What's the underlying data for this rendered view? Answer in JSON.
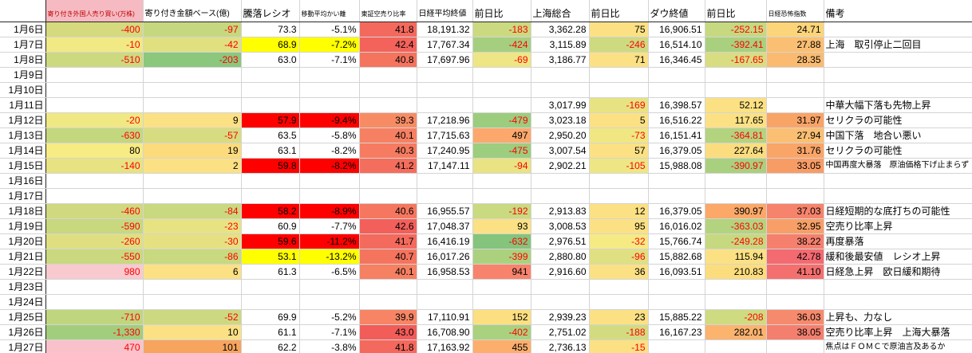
{
  "colors": {
    "negative_text": "#ff0000",
    "alert_red_fill": "#ff0000",
    "alert_yellow_fill": "#ffff00",
    "header_foreign_bg": "#f5bac2",
    "header_foreign_fg": "#c00000"
  },
  "table": {
    "columns": [
      {
        "key": "date",
        "label": ""
      },
      {
        "key": "foreign",
        "label": "寄り付き外国人売り買い(万株)",
        "hstyle": "small-red",
        "hbg": "#f5bac2",
        "hfg": "#c00000"
      },
      {
        "key": "amount",
        "label": "寄り付き金額ベース(億)",
        "hstyle": "mid"
      },
      {
        "key": "ratio",
        "label": "騰落レシオ"
      },
      {
        "key": "ma_dev",
        "label": "移動平均かい離",
        "hstyle": "small"
      },
      {
        "key": "short_sell",
        "label": "東証空売り比率",
        "hstyle": "small"
      },
      {
        "key": "nikkei",
        "label": "日経平均終値",
        "hstyle": "mid"
      },
      {
        "key": "nikkei_chg",
        "label": "前日比"
      },
      {
        "key": "shanghai",
        "label": "上海総合"
      },
      {
        "key": "shanghai_chg",
        "label": "前日比"
      },
      {
        "key": "dow",
        "label": "ダウ終値"
      },
      {
        "key": "dow_chg",
        "label": "前日比"
      },
      {
        "key": "vix",
        "label": "日経恐怖指数",
        "hstyle": "small"
      },
      {
        "key": "note",
        "label": "備考"
      }
    ],
    "rows": [
      {
        "date": "1月6日",
        "cells": [
          [
            "-400",
            "#d5da7f",
            "r"
          ],
          [
            "-97",
            "#c6d87f",
            "r"
          ],
          "73.3",
          "-5.1%",
          [
            "41.8",
            "#f4695d",
            ""
          ],
          "18,191.32",
          [
            "-183",
            "#cbda80",
            "r"
          ],
          "3,362.28",
          [
            "75",
            "#fbe184",
            ""
          ],
          "16,906.51",
          [
            "-252.15",
            "#c6d980",
            "r"
          ],
          [
            "24.71",
            "#fcd57b",
            ""
          ]
        ],
        "note": ""
      },
      {
        "date": "1月7日",
        "cells": [
          [
            "-10",
            "#f1e983",
            "r"
          ],
          [
            "-42",
            "#e0e081",
            "r"
          ],
          [
            "68.9",
            "#ffff00",
            ""
          ],
          [
            "-7.2%",
            "#ffff00",
            ""
          ],
          [
            "42.4",
            "#f3635b",
            ""
          ],
          "17,767.34",
          [
            "-424",
            "#a5cf7e",
            "r"
          ],
          "3,115.89",
          [
            "-246",
            "#cdda80",
            "r"
          ],
          "16,514.10",
          [
            "-392.41",
            "#a9d07e",
            "r"
          ],
          [
            "27.88",
            "#fbbf73",
            ""
          ]
        ],
        "note": "上海　取引停止二回目"
      },
      {
        "date": "1月8日",
        "cells": [
          [
            "-510",
            "#cdd97f",
            "r"
          ],
          [
            "-203",
            "#8bc77d",
            "r"
          ],
          "63.0",
          "-7.1%",
          [
            "40.8",
            "#f5745e",
            ""
          ],
          "17,697.96",
          [
            "-69",
            "#eee684",
            "r"
          ],
          "3,186.77",
          [
            "71",
            "#fbe184",
            ""
          ],
          "16,346.45",
          [
            "-167.65",
            "#d9dd81",
            "r"
          ],
          [
            "28.35",
            "#fabb71",
            ""
          ]
        ],
        "note": ""
      },
      {
        "date": "1月9日",
        "cells": [
          "",
          "",
          "",
          "",
          "",
          "",
          "",
          "",
          "",
          "",
          "",
          ""
        ],
        "note": ""
      },
      {
        "date": "1月10日",
        "cells": [
          "",
          "",
          "",
          "",
          "",
          "",
          "",
          "",
          "",
          "",
          "",
          ""
        ],
        "note": ""
      },
      {
        "date": "1月11日",
        "cells": [
          "",
          "",
          "",
          "",
          "",
          "",
          "",
          "3,017.99",
          [
            "-169",
            "#e8e382",
            "r"
          ],
          "16,398.57",
          [
            "52.12",
            "#fbe184",
            ""
          ],
          ""
        ],
        "note": "中華大幅下落も先物上昇"
      },
      {
        "date": "1月12日",
        "cells": [
          [
            "-20",
            "#f0e883",
            "r"
          ],
          [
            "9",
            "#fbe184",
            ""
          ],
          [
            "57.9",
            "#ff0000",
            ""
          ],
          [
            "-9.4%",
            "#ff0000",
            ""
          ],
          [
            "39.3",
            "#f78c64",
            ""
          ],
          "17,218.96",
          [
            "-479",
            "#9ccd7e",
            "r"
          ],
          "3,023.18",
          [
            "5",
            "#fbe184",
            ""
          ],
          "16,516.22",
          [
            "117.65",
            "#fbe184",
            ""
          ],
          [
            "31.97",
            "#f9a467",
            ""
          ]
        ],
        "note": "セリクラの可能性"
      },
      {
        "date": "1月13日",
        "cells": [
          [
            "-630",
            "#c3d77e",
            "r"
          ],
          [
            "-57",
            "#d8dc80",
            "r"
          ],
          "63.5",
          "-5.8%",
          [
            "40.1",
            "#f68062",
            ""
          ],
          "17,715.63",
          [
            "497",
            "#fca86c",
            ""
          ],
          "2,950.20",
          [
            "-73",
            "#f0e783",
            "r"
          ],
          "16,151.41",
          [
            "-364.81",
            "#b3d37f",
            "r"
          ],
          [
            "27.94",
            "#fbbf73",
            ""
          ]
        ],
        "note": "中国下落　地合い悪い"
      },
      {
        "date": "1月14日",
        "cells": [
          [
            "80",
            "#f7eb84",
            ""
          ],
          [
            "19",
            "#fcdb7d",
            ""
          ],
          "63.1",
          "-8.2%",
          [
            "40.3",
            "#f67b60",
            ""
          ],
          "17,240.95",
          [
            "-475",
            "#9dcd7e",
            "r"
          ],
          "3,007.54",
          [
            "57",
            "#fbe184",
            ""
          ],
          "16,379.05",
          [
            "227.64",
            "#fbdd80",
            ""
          ],
          [
            "31.76",
            "#f9a568",
            ""
          ]
        ],
        "note": "セリクラの可能性"
      },
      {
        "date": "1月15日",
        "cells": [
          [
            "-140",
            "#e7e282",
            "r"
          ],
          [
            "2",
            "#fbe184",
            ""
          ],
          [
            "59.8",
            "#ff0000",
            ""
          ],
          [
            "-8.2%",
            "#ff0000",
            ""
          ],
          [
            "41.2",
            "#f46e5d",
            ""
          ],
          "17,147.11",
          [
            "-94",
            "#e9e383",
            "r"
          ],
          "2,902.21",
          [
            "-105",
            "#eee684",
            "r"
          ],
          "15,988.08",
          [
            "-390.97",
            "#a9d07e",
            "r"
          ],
          [
            "33.05",
            "#f89c66",
            ""
          ]
        ],
        "note": "中国再度大暴落　原油価格下げ止まらず",
        "note_small": true
      },
      {
        "date": "1月16日",
        "cells": [
          "",
          "",
          "",
          "",
          "",
          "",
          "",
          "",
          "",
          "",
          "",
          ""
        ],
        "note": ""
      },
      {
        "date": "1月17日",
        "cells": [
          "",
          "",
          "",
          "",
          "",
          "",
          "",
          "",
          "",
          "",
          "",
          ""
        ],
        "note": ""
      },
      {
        "date": "1月18日",
        "cells": [
          [
            "-460",
            "#d0d97f",
            "r"
          ],
          [
            "-84",
            "#c9d97f",
            "r"
          ],
          [
            "58.2",
            "#ff0000",
            ""
          ],
          [
            "-8.9%",
            "#ff0000",
            ""
          ],
          [
            "40.6",
            "#f5775f",
            ""
          ],
          "16,955.57",
          [
            "-192",
            "#c9da80",
            "r"
          ],
          "2,913.83",
          [
            "12",
            "#fbe184",
            ""
          ],
          "16,379.05",
          [
            "390.97",
            "#fba869",
            ""
          ],
          [
            "37.03",
            "#f6836c",
            ""
          ]
        ],
        "note": "日経短期的な底打ちの可能性"
      },
      {
        "date": "1月19日",
        "cells": [
          [
            "-590",
            "#c7d87e",
            "r"
          ],
          [
            "-23",
            "#e8e382",
            "r"
          ],
          "60.9",
          "-7.7%",
          [
            "42.6",
            "#f35f5a",
            ""
          ],
          "17,048.37",
          [
            "93",
            "#fbe184",
            ""
          ],
          "3,008.53",
          [
            "95",
            "#fbe184",
            ""
          ],
          "16,016.02",
          [
            "-363.03",
            "#b3d37f",
            "r"
          ],
          [
            "32.95",
            "#f89f67",
            ""
          ]
        ],
        "note": "空売り比率上昇"
      },
      {
        "date": "1月20日",
        "cells": [
          [
            "-260",
            "#dfdf81",
            "r"
          ],
          [
            "-30",
            "#e5e182",
            "r"
          ],
          [
            "59.6",
            "#ff0000",
            ""
          ],
          [
            "-11.2%",
            "#ff0000",
            ""
          ],
          [
            "41.7",
            "#f46a5d",
            ""
          ],
          "16,416.19",
          [
            "-632",
            "#84c47c",
            "r"
          ],
          "2,976.51",
          [
            "-32",
            "#f6ea84",
            "r"
          ],
          "15,766.74",
          [
            "-249.28",
            "#c6d980",
            "r"
          ],
          [
            "38.22",
            "#f5806e",
            ""
          ]
        ],
        "note": "再度暴落"
      },
      {
        "date": "1月21日",
        "cells": [
          [
            "-550",
            "#cad87f",
            "r"
          ],
          [
            "-86",
            "#c8d97f",
            "r"
          ],
          [
            "53.1",
            "#ffff00",
            ""
          ],
          [
            "-13.2%",
            "#ffff00",
            ""
          ],
          [
            "40.7",
            "#f5745e",
            ""
          ],
          "16,017.26",
          [
            "-399",
            "#abd17e",
            "r"
          ],
          "2,880.80",
          [
            "-96",
            "#dfe081",
            "r"
          ],
          "15,882.68",
          [
            "115.94",
            "#fbe184",
            ""
          ],
          [
            "42.78",
            "#f36a71",
            ""
          ]
        ],
        "note": "緩和後最安値　レシオ上昇"
      },
      {
        "date": "1月22日",
        "cells": [
          [
            "980",
            "#f8c9ce",
            "r"
          ],
          [
            "6",
            "#fbe184",
            ""
          ],
          "61.3",
          "-6.5%",
          [
            "40.1",
            "#f68062",
            ""
          ],
          "16,958.53",
          [
            "941",
            "#f8836c",
            ""
          ],
          "2,916.60",
          [
            "36",
            "#fbe184",
            ""
          ],
          "16,093.51",
          [
            "210.83",
            "#fcdd7e",
            ""
          ],
          [
            "41.10",
            "#f4706f",
            ""
          ]
        ],
        "note": "日経急上昇　欧日緩和期待"
      },
      {
        "date": "1月23日",
        "cells": [
          "",
          "",
          "",
          "",
          "",
          "",
          "",
          "",
          "",
          "",
          "",
          ""
        ],
        "note": ""
      },
      {
        "date": "1月24日",
        "cells": [
          "",
          "",
          "",
          "",
          "",
          "",
          "",
          "",
          "",
          "",
          "",
          ""
        ],
        "note": ""
      },
      {
        "date": "1月25日",
        "cells": [
          [
            "-710",
            "#c0d67e",
            "r"
          ],
          [
            "-52",
            "#cdd980",
            "r"
          ],
          "69.9",
          "-5.2%",
          [
            "39.9",
            "#f78565",
            ""
          ],
          "17,110.91",
          [
            "152",
            "#fcdf80",
            ""
          ],
          "2,939.23",
          [
            "23",
            "#fbe184",
            ""
          ],
          "15,885.22",
          [
            "-208",
            "#cfdb80",
            "r"
          ],
          [
            "36.03",
            "#f68a6d",
            ""
          ]
        ],
        "note": "上昇も、力なし"
      },
      {
        "date": "1月26日",
        "cells": [
          [
            "-1,330",
            "#a2cd7d",
            "r"
          ],
          [
            "10",
            "#fbe184",
            ""
          ],
          "61.1",
          "-7.1%",
          [
            "43.0",
            "#f25c59",
            ""
          ],
          "16,708.90",
          [
            "-402",
            "#aad17e",
            "r"
          ],
          "2,751.02",
          [
            "-188",
            "#d3db80",
            "r"
          ],
          "16,167.23",
          [
            "282.01",
            "#fbb36e",
            ""
          ],
          [
            "38.05",
            "#f57f6e",
            ""
          ]
        ],
        "note": "空売り比率上昇　上海大暴落"
      },
      {
        "date": "1月27日",
        "cells": [
          [
            "470",
            "#f9c2ca",
            "r"
          ],
          [
            "101",
            "#f7a45f",
            ""
          ],
          "62.2",
          "-3.8%",
          [
            "41.8",
            "#f4695d",
            ""
          ],
          "17,163.92",
          [
            "455",
            "#fcaf6d",
            ""
          ],
          "2,736.13",
          [
            "-15",
            "#fbe184",
            "r"
          ],
          "",
          "",
          ""
        ],
        "note": "焦点はＦＯＭＣで原油言及あるか",
        "note_small": true
      }
    ]
  }
}
